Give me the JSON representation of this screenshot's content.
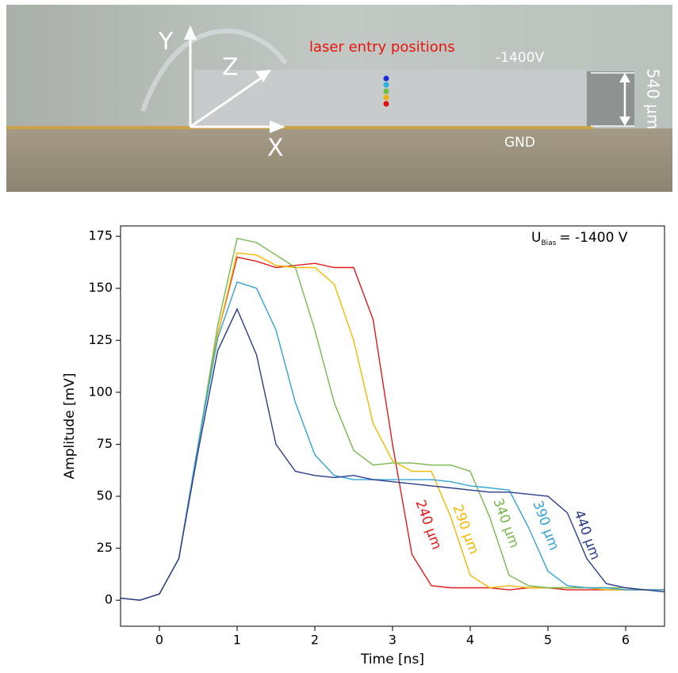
{
  "photo": {
    "axis_y": "Y",
    "axis_z": "Z",
    "axis_x": "X",
    "caption": "laser entry positions",
    "voltage": "-1400V",
    "thickness": "540 µm",
    "ground": "GND"
  },
  "chart_data": {
    "type": "line",
    "annotation": {
      "main": "U",
      "sub": "Bias",
      "rest": "= -1400 V"
    },
    "x_label": "Time [ns]",
    "y_label": "Amplitude [mV]",
    "x": [
      -0.5,
      -0.25,
      0,
      0.25,
      0.5,
      0.75,
      1,
      1.25,
      1.5,
      1.75,
      2,
      2.25,
      2.5,
      2.75,
      3,
      3.25,
      3.5,
      3.75,
      4,
      4.25,
      4.5,
      4.75,
      5,
      5.25,
      5.5,
      5.75,
      6,
      6.25,
      6.5
    ],
    "series": [
      {
        "name": "240 µm",
        "color": "#e31a1c",
        "values": [
          1,
          0,
          3,
          20,
          75,
          128,
          165,
          163,
          160,
          161,
          162,
          160,
          160,
          135,
          75,
          22,
          7,
          6,
          6,
          6,
          5,
          6,
          6,
          5,
          5,
          5,
          5,
          5,
          5
        ]
      },
      {
        "name": "290 µm",
        "color": "#f5b800",
        "values": [
          1,
          0,
          3,
          20,
          75,
          128,
          167,
          166,
          161,
          160,
          160,
          152,
          125,
          85,
          67,
          62,
          62,
          40,
          12,
          6,
          7,
          6,
          6,
          6,
          6,
          5,
          5,
          5,
          5
        ]
      },
      {
        "name": "340 µm",
        "color": "#78b84f",
        "values": [
          1,
          0,
          3,
          20,
          75,
          132,
          174,
          172,
          166,
          160,
          130,
          95,
          72,
          65,
          66,
          66,
          65,
          65,
          62,
          40,
          12,
          7,
          6,
          6,
          6,
          6,
          6,
          5,
          5
        ]
      },
      {
        "name": "390 µm",
        "color": "#33a3d6",
        "values": [
          1,
          0,
          3,
          20,
          75,
          126,
          153,
          150,
          130,
          95,
          70,
          60,
          58,
          58,
          58,
          58,
          58,
          57,
          55,
          54,
          53,
          35,
          14,
          7,
          6,
          6,
          5,
          5,
          5
        ]
      },
      {
        "name": "440 µm",
        "color": "#2b3c8c",
        "values": [
          1,
          0,
          3,
          20,
          72,
          120,
          140,
          118,
          75,
          62,
          60,
          59,
          60,
          58,
          57,
          56,
          55,
          54,
          53,
          52,
          52,
          51,
          50,
          42,
          20,
          8,
          6,
          5,
          4
        ]
      }
    ],
    "xlim": [
      -0.5,
      6.5
    ],
    "ylim": [
      -12.5,
      180
    ],
    "xticks": [
      0,
      1,
      2,
      3,
      4,
      5,
      6
    ],
    "yticks": [
      0,
      25,
      50,
      75,
      100,
      125,
      150,
      175
    ]
  }
}
